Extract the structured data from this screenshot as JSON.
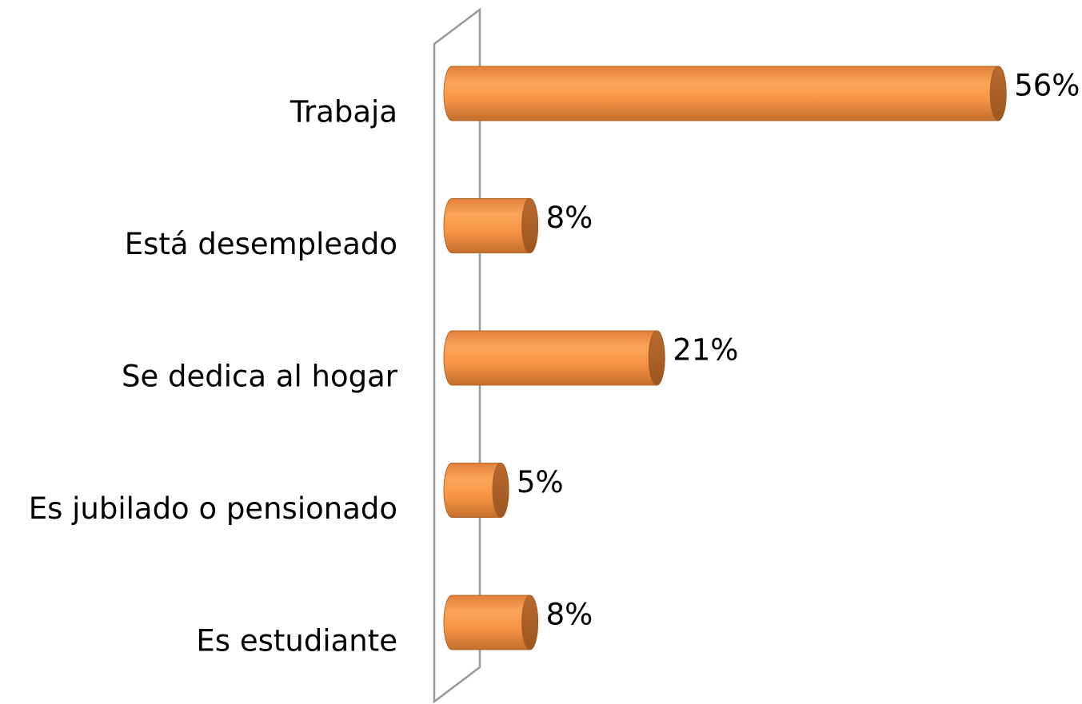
{
  "chart_data": {
    "type": "bar",
    "orientation": "horizontal",
    "categories": [
      "Trabaja",
      "Está desempleado",
      "Se dedica al hogar",
      "Es jubilado o pensionado",
      "Es estudiante"
    ],
    "values": [
      56,
      8,
      21,
      5,
      8
    ],
    "value_labels": [
      "56%",
      "8%",
      "21%",
      "5%",
      "8%"
    ],
    "color": "#f79646"
  }
}
